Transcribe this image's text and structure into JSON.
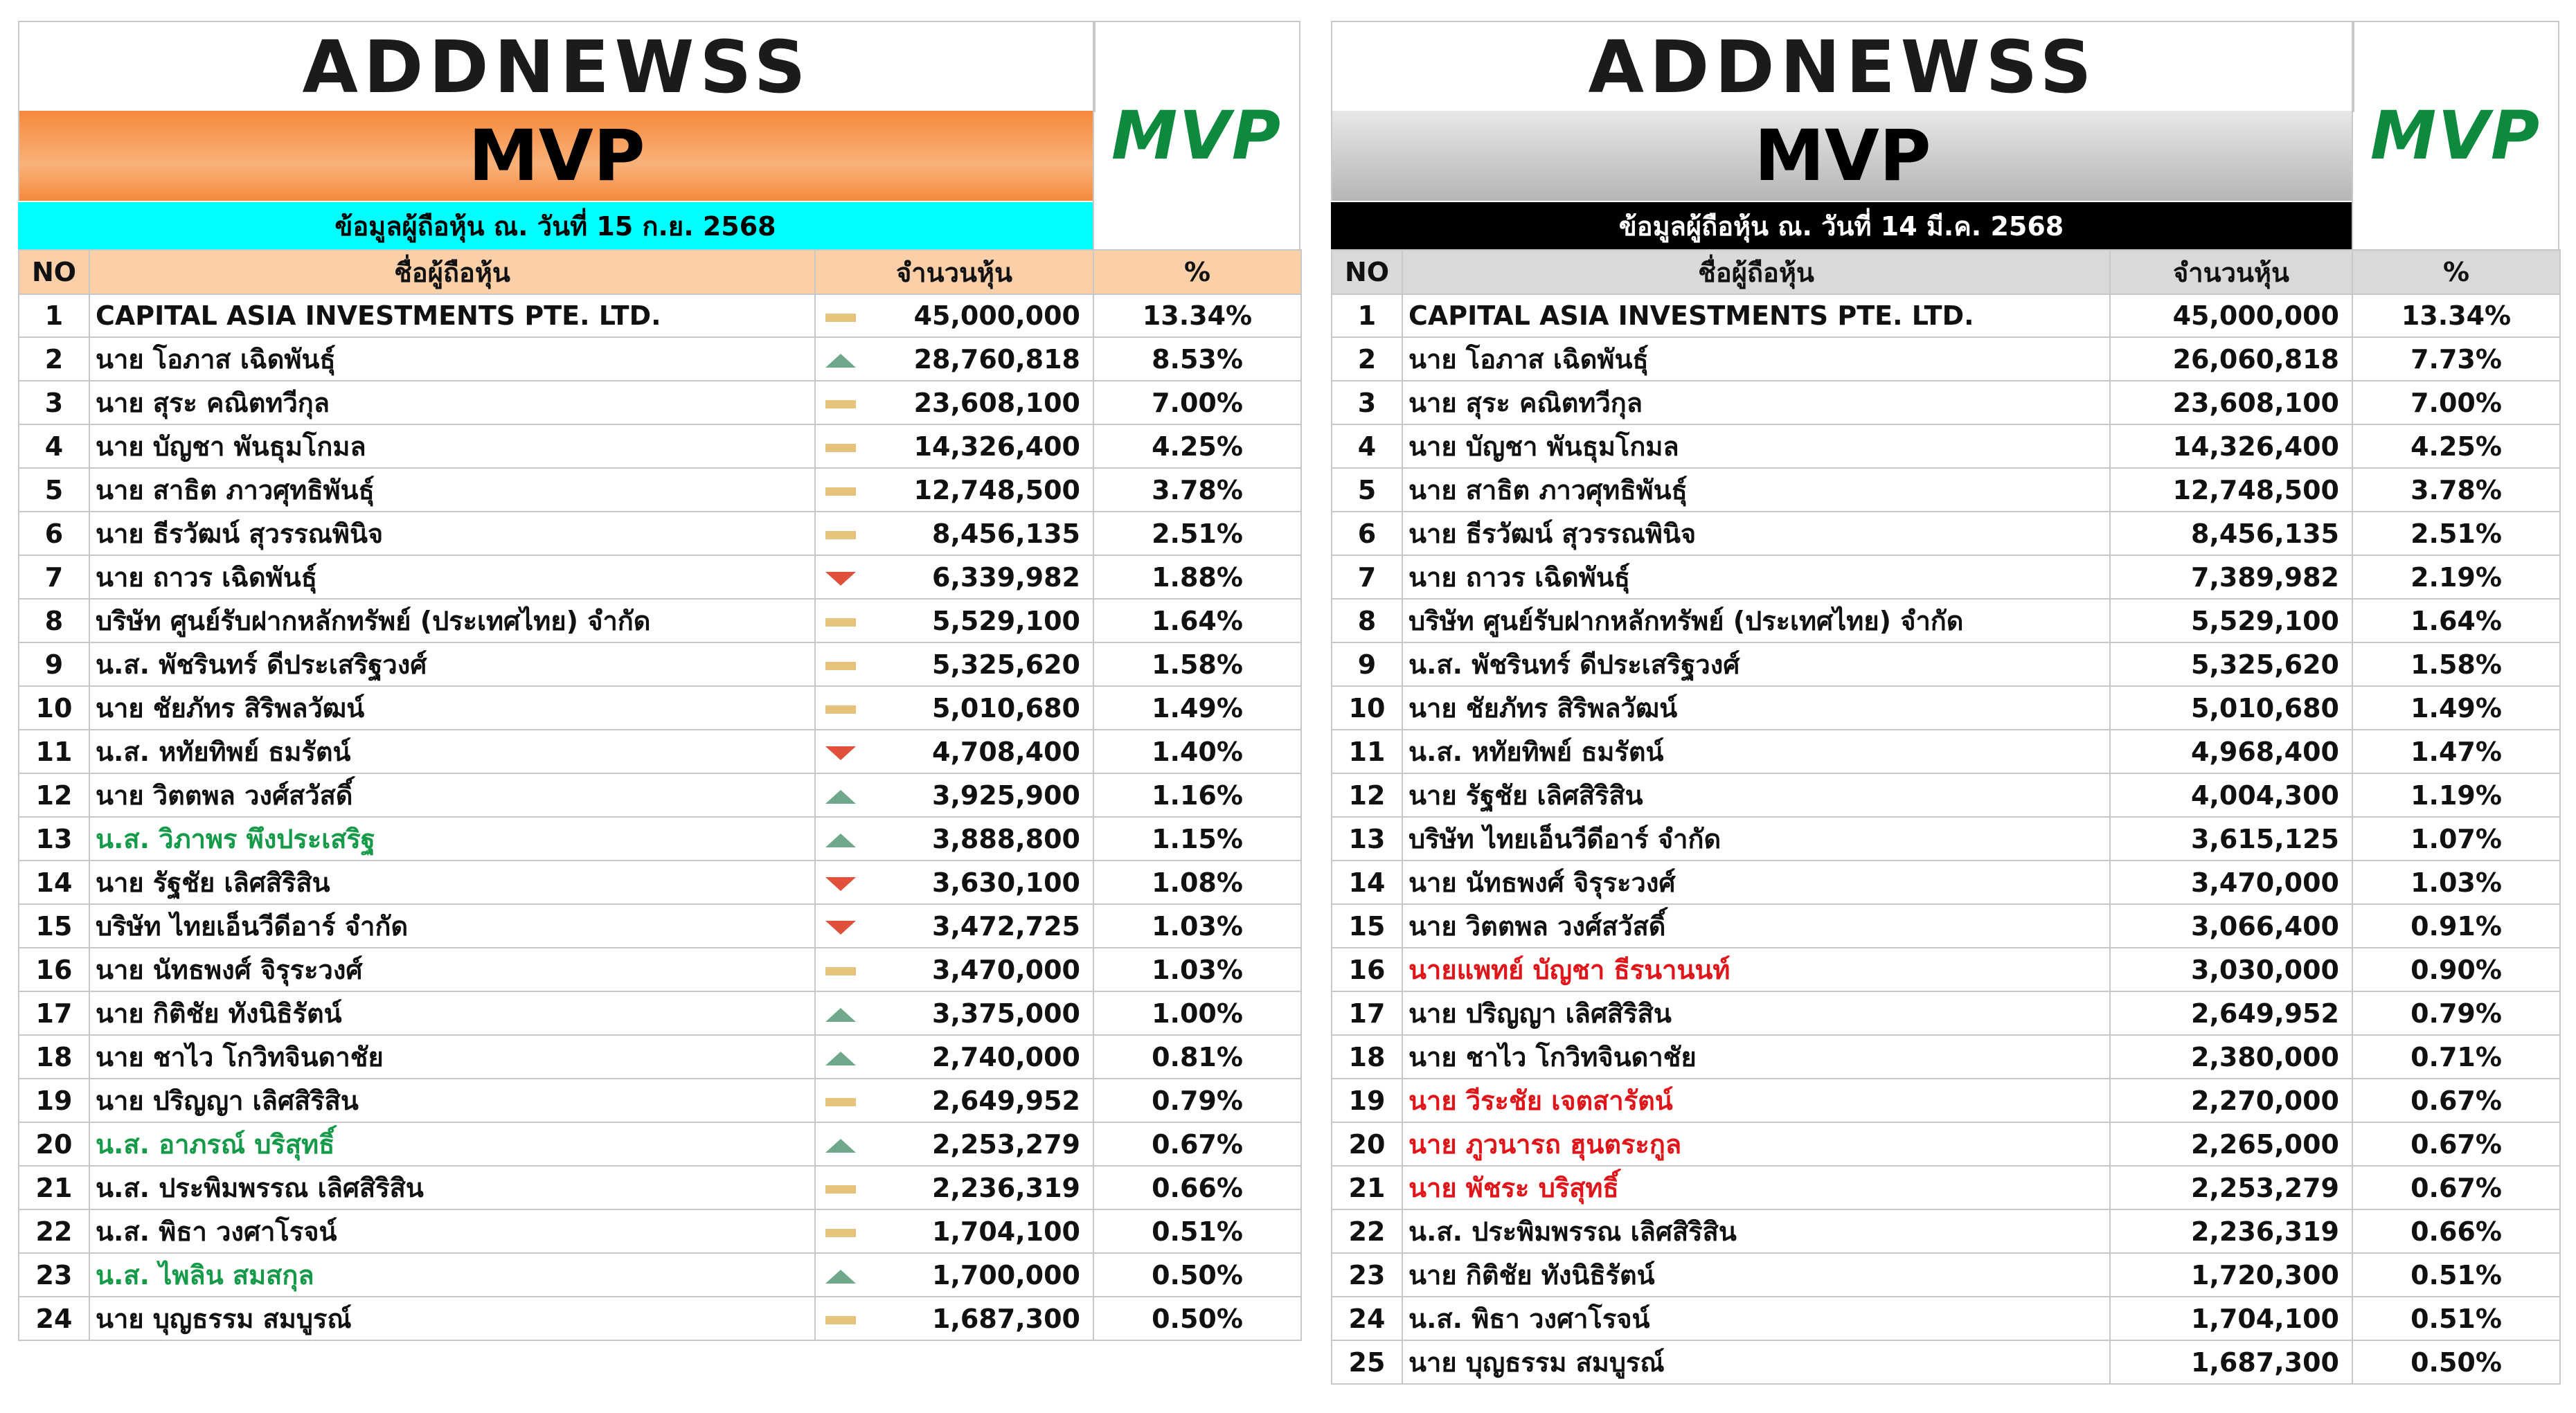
{
  "colors": {
    "orange_band": "#f5893c",
    "cyan_band": "#00ffff",
    "peach_header": "#fbcfa8",
    "silver_band": "#c9c9c9",
    "black_band": "#000000",
    "grey_header": "#d9d9d9",
    "green_text": "#159a49",
    "red_text": "#e0151a"
  },
  "left": {
    "logo": "ADDNEWSS",
    "title": "MVP",
    "badge": "MVP",
    "date_label": "ข้อมูลผู้ถือหุ้น ณ. วันที่  15 ก.ย. 2568",
    "headers": {
      "no": "NO",
      "name": "ชื่อผู้ถือหุ้น",
      "shares": "จำนวนหุ้น",
      "pct": "%"
    },
    "rows": [
      {
        "no": "1",
        "name": "CAPITAL ASIA INVESTMENTS PTE. LTD.",
        "trend": "same",
        "shares": "45,000,000",
        "pct": "13.34%",
        "color": ""
      },
      {
        "no": "2",
        "name": "นาย โอภาส เฉิดพันธุ์",
        "trend": "up",
        "shares": "28,760,818",
        "pct": "8.53%",
        "color": ""
      },
      {
        "no": "3",
        "name": "นาย สุระ คณิตทวีกุล",
        "trend": "same",
        "shares": "23,608,100",
        "pct": "7.00%",
        "color": ""
      },
      {
        "no": "4",
        "name": "นาย บัญชา พันธุมโกมล",
        "trend": "same",
        "shares": "14,326,400",
        "pct": "4.25%",
        "color": ""
      },
      {
        "no": "5",
        "name": "นาย สาธิต ภาวศุทธิพันธุ์",
        "trend": "same",
        "shares": "12,748,500",
        "pct": "3.78%",
        "color": ""
      },
      {
        "no": "6",
        "name": "นาย ธีรวัฒน์ สุวรรณพินิจ",
        "trend": "same",
        "shares": "8,456,135",
        "pct": "2.51%",
        "color": ""
      },
      {
        "no": "7",
        "name": "นาย ถาวร เฉิดพันธุ์",
        "trend": "down",
        "shares": "6,339,982",
        "pct": "1.88%",
        "color": ""
      },
      {
        "no": "8",
        "name": "บริษัท  ศูนย์รับฝากหลักทรัพย์ (ประเทศไทย) จำกัด",
        "trend": "same",
        "shares": "5,529,100",
        "pct": "1.64%",
        "color": ""
      },
      {
        "no": "9",
        "name": "น.ส. พัชรินทร์ ดีประเสริฐวงศ์",
        "trend": "same",
        "shares": "5,325,620",
        "pct": "1.58%",
        "color": ""
      },
      {
        "no": "10",
        "name": "นาย ชัยภัทร สิริพลวัฒน์",
        "trend": "same",
        "shares": "5,010,680",
        "pct": "1.49%",
        "color": ""
      },
      {
        "no": "11",
        "name": "น.ส. หทัยทิพย์ ธมรัตน์",
        "trend": "down",
        "shares": "4,708,400",
        "pct": "1.40%",
        "color": ""
      },
      {
        "no": "12",
        "name": "นาย วิตตพล วงศ์สวัสดิ์",
        "trend": "up",
        "shares": "3,925,900",
        "pct": "1.16%",
        "color": ""
      },
      {
        "no": "13",
        "name": "น.ส. วิภาพร พึงประเสริฐ",
        "trend": "up",
        "shares": "3,888,800",
        "pct": "1.15%",
        "color": "green"
      },
      {
        "no": "14",
        "name": "นาย รัฐชัย เลิศสิริสิน",
        "trend": "down",
        "shares": "3,630,100",
        "pct": "1.08%",
        "color": ""
      },
      {
        "no": "15",
        "name": "บริษัท  ไทยเอ็นวีดีอาร์ จำกัด",
        "trend": "down",
        "shares": "3,472,725",
        "pct": "1.03%",
        "color": ""
      },
      {
        "no": "16",
        "name": "นาย นัทธพงศ์ จิรุระวงศ์",
        "trend": "same",
        "shares": "3,470,000",
        "pct": "1.03%",
        "color": ""
      },
      {
        "no": "17",
        "name": "นาย กิติชัย ทังนิธิรัตน์",
        "trend": "up",
        "shares": "3,375,000",
        "pct": "1.00%",
        "color": ""
      },
      {
        "no": "18",
        "name": "นาย ชาไว โกวิทจินดาชัย",
        "trend": "up",
        "shares": "2,740,000",
        "pct": "0.81%",
        "color": ""
      },
      {
        "no": "19",
        "name": "นาย ปริญญา เลิศสิริสิน",
        "trend": "same",
        "shares": "2,649,952",
        "pct": "0.79%",
        "color": ""
      },
      {
        "no": "20",
        "name": "น.ส. อาภรณ์ บริสุทธิ์",
        "trend": "up",
        "shares": "2,253,279",
        "pct": "0.67%",
        "color": "green"
      },
      {
        "no": "21",
        "name": "น.ส. ประพิมพรรณ เลิศสิริสิน",
        "trend": "same",
        "shares": "2,236,319",
        "pct": "0.66%",
        "color": ""
      },
      {
        "no": "22",
        "name": "น.ส. พิธา วงศาโรจน์",
        "trend": "same",
        "shares": "1,704,100",
        "pct": "0.51%",
        "color": ""
      },
      {
        "no": "23",
        "name": "น.ส. ไพลิน สมสกุล",
        "trend": "up",
        "shares": "1,700,000",
        "pct": "0.50%",
        "color": "green"
      },
      {
        "no": "24",
        "name": "นาย บุญธรรม สมบูรณ์",
        "trend": "same",
        "shares": "1,687,300",
        "pct": "0.50%",
        "color": ""
      }
    ]
  },
  "right": {
    "logo": "ADDNEWSS",
    "title": "MVP",
    "badge": "MVP",
    "date_label": "ข้อมูลผู้ถือหุ้น ณ. วันที่  14 มี.ค. 2568",
    "headers": {
      "no": "NO",
      "name": "ชื่อผู้ถือหุ้น",
      "shares": "จำนวนหุ้น",
      "pct": "%"
    },
    "rows": [
      {
        "no": "1",
        "name": "CAPITAL ASIA INVESTMENTS PTE. LTD.",
        "shares": "45,000,000",
        "pct": "13.34%",
        "color": ""
      },
      {
        "no": "2",
        "name": "นาย โอภาส เฉิดพันธุ์",
        "shares": "26,060,818",
        "pct": "7.73%",
        "color": ""
      },
      {
        "no": "3",
        "name": "นาย สุระ คณิตทวีกุล",
        "shares": "23,608,100",
        "pct": "7.00%",
        "color": ""
      },
      {
        "no": "4",
        "name": "นาย บัญชา พันธุมโกมล",
        "shares": "14,326,400",
        "pct": "4.25%",
        "color": ""
      },
      {
        "no": "5",
        "name": "นาย สาธิต ภาวศุทธิพันธุ์",
        "shares": "12,748,500",
        "pct": "3.78%",
        "color": ""
      },
      {
        "no": "6",
        "name": "นาย ธีรวัฒน์ สุวรรณพินิจ",
        "shares": "8,456,135",
        "pct": "2.51%",
        "color": ""
      },
      {
        "no": "7",
        "name": "นาย ถาวร เฉิดพันธุ์",
        "shares": "7,389,982",
        "pct": "2.19%",
        "color": ""
      },
      {
        "no": "8",
        "name": "บริษัท  ศูนย์รับฝากหลักทรัพย์ (ประเทศไทย) จำกัด",
        "shares": "5,529,100",
        "pct": "1.64%",
        "color": ""
      },
      {
        "no": "9",
        "name": "น.ส. พัชรินทร์ ดีประเสริฐวงศ์",
        "shares": "5,325,620",
        "pct": "1.58%",
        "color": ""
      },
      {
        "no": "10",
        "name": "นาย ชัยภัทร สิริพลวัฒน์",
        "shares": "5,010,680",
        "pct": "1.49%",
        "color": ""
      },
      {
        "no": "11",
        "name": "น.ส. หทัยทิพย์ ธมรัตน์",
        "shares": "4,968,400",
        "pct": "1.47%",
        "color": ""
      },
      {
        "no": "12",
        "name": "นาย รัฐชัย เลิศสิริสิน",
        "shares": "4,004,300",
        "pct": "1.19%",
        "color": ""
      },
      {
        "no": "13",
        "name": "บริษัท  ไทยเอ็นวีดีอาร์ จำกัด",
        "shares": "3,615,125",
        "pct": "1.07%",
        "color": ""
      },
      {
        "no": "14",
        "name": "นาย นัทธพงศ์ จิรุระวงศ์",
        "shares": "3,470,000",
        "pct": "1.03%",
        "color": ""
      },
      {
        "no": "15",
        "name": "นาย วิตตพล วงศ์สวัสดิ์",
        "shares": "3,066,400",
        "pct": "0.91%",
        "color": ""
      },
      {
        "no": "16",
        "name": "นายแพทย์ บัญชา ธีรนานนท์",
        "shares": "3,030,000",
        "pct": "0.90%",
        "color": "red"
      },
      {
        "no": "17",
        "name": "นาย ปริญญา เลิศสิริสิน",
        "shares": "2,649,952",
        "pct": "0.79%",
        "color": ""
      },
      {
        "no": "18",
        "name": "นาย ชาไว โกวิทจินดาชัย",
        "shares": "2,380,000",
        "pct": "0.71%",
        "color": ""
      },
      {
        "no": "19",
        "name": "นาย วีระชัย เจตสารัตน์",
        "shares": "2,270,000",
        "pct": "0.67%",
        "color": "red"
      },
      {
        "no": "20",
        "name": "นาย ภูวนารถ ฮุนตระกูล",
        "shares": "2,265,000",
        "pct": "0.67%",
        "color": "red"
      },
      {
        "no": "21",
        "name": "นาย พัชระ บริสุทธิ์",
        "shares": "2,253,279",
        "pct": "0.67%",
        "color": "red"
      },
      {
        "no": "22",
        "name": "น.ส. ประพิมพรรณ เลิศสิริสิน",
        "shares": "2,236,319",
        "pct": "0.66%",
        "color": ""
      },
      {
        "no": "23",
        "name": "นาย กิติชัย ทังนิธิรัตน์",
        "shares": "1,720,300",
        "pct": "0.51%",
        "color": ""
      },
      {
        "no": "24",
        "name": "น.ส. พิธา วงศาโรจน์",
        "shares": "1,704,100",
        "pct": "0.51%",
        "color": ""
      },
      {
        "no": "25",
        "name": "นาย บุญธรรม สมบูรณ์",
        "shares": "1,687,300",
        "pct": "0.50%",
        "color": ""
      }
    ]
  }
}
